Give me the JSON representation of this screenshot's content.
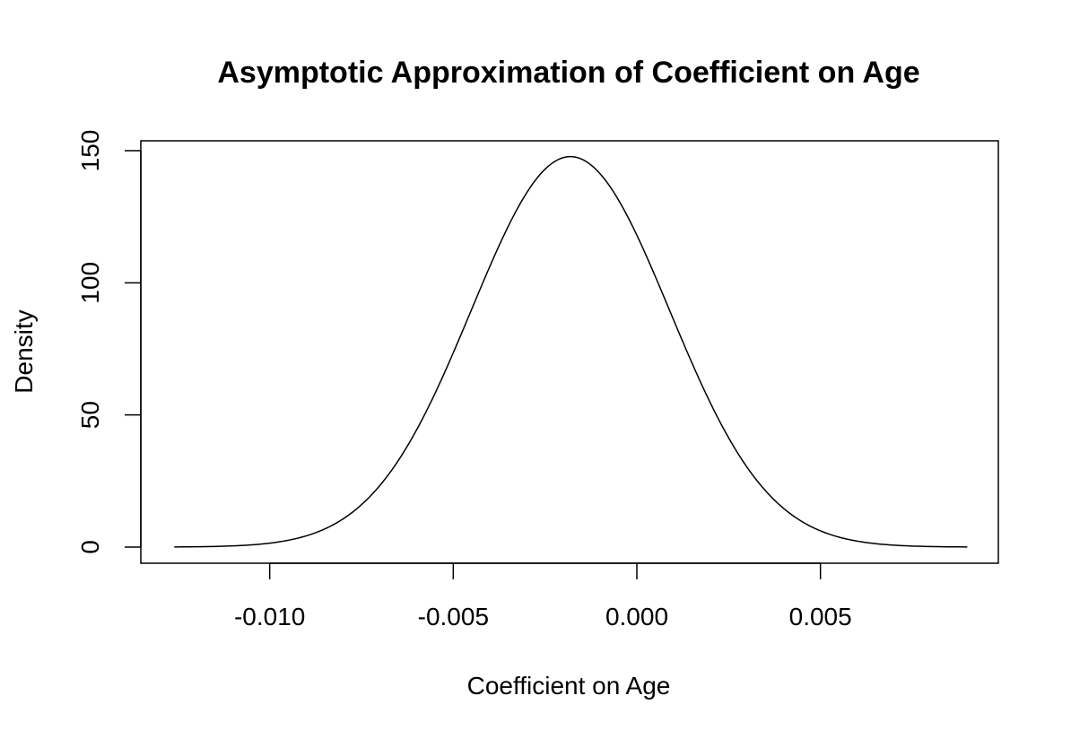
{
  "chart_data": {
    "type": "line",
    "title": "Asymptotic Approximation of Coefficient on Age",
    "xlabel": "Coefficient on Age",
    "ylabel": "Density",
    "xlim": [
      -0.0125,
      0.009
    ],
    "ylim": [
      0,
      148
    ],
    "x_ticks": [
      -0.01,
      -0.005,
      0.0,
      0.005
    ],
    "x_tick_labels": [
      "-0.010",
      "-0.005",
      "0.000",
      "0.005"
    ],
    "y_ticks": [
      0,
      50,
      100,
      150
    ],
    "y_tick_labels": [
      "0",
      "50",
      "100",
      "150"
    ],
    "grid": false,
    "legend": "none",
    "series": [
      {
        "distribution": "normal",
        "mean": -0.00181,
        "sd": 0.0027,
        "x_range": [
          -0.0126,
          0.009
        ]
      }
    ],
    "line_color": "#000000"
  }
}
